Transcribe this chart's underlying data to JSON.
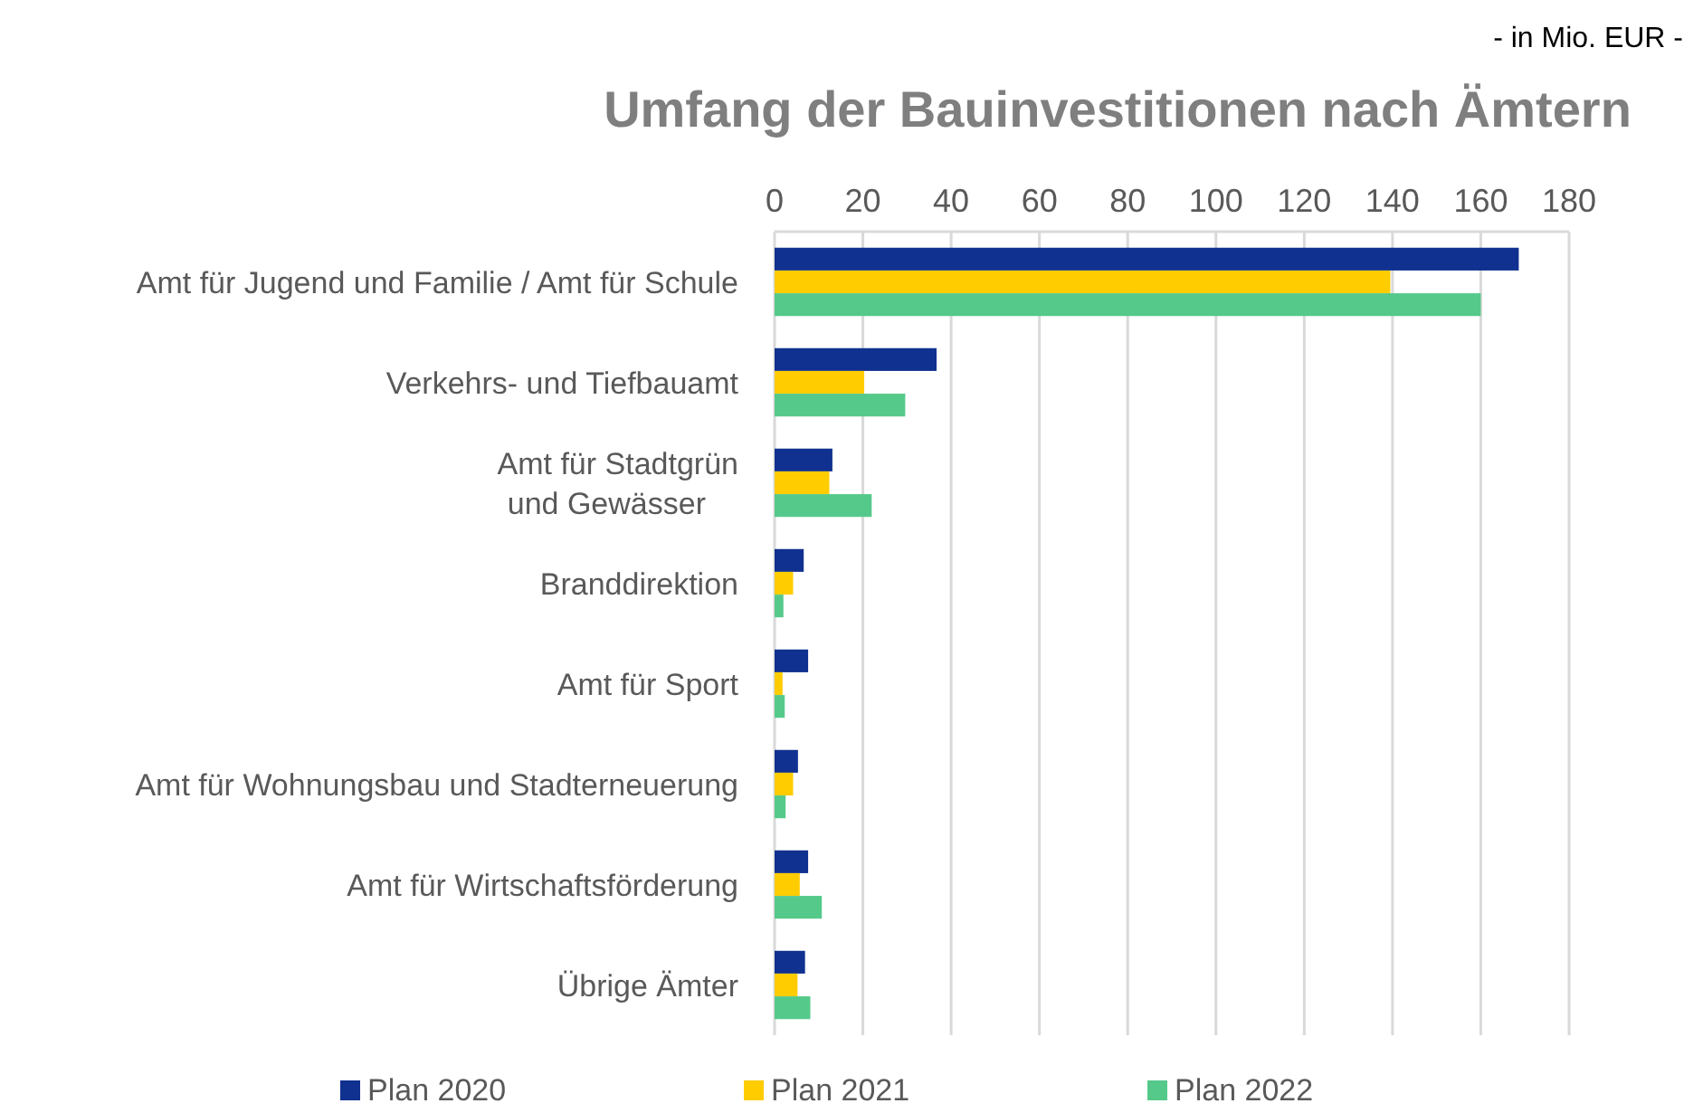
{
  "chart_data": {
    "type": "bar",
    "orientation": "horizontal",
    "title": "Umfang der Bauinvestitionen nach Ämtern",
    "annotations": [
      "- in Mio. EUR -"
    ],
    "categories": [
      "Amt für Jugend und Familie / Amt für Schule",
      "Verkehrs- und Tiefbauamt",
      "Amt für Stadtgrün\nund Gewässer",
      "Branddirektion",
      "Amt für Sport",
      "Amt für Wohnungsbau und Stadterneuerung",
      "Amt für Wirtschaftsförderung",
      "Übrige Ämter"
    ],
    "series": [
      {
        "name": "Plan 2020",
        "color": "#10318f",
        "values": [
          168.6,
          36.7,
          13.1,
          6.6,
          7.6,
          5.3,
          7.6,
          6.9
        ]
      },
      {
        "name": "Plan 2021",
        "color": "#ffcc00",
        "values": [
          139.5,
          20.3,
          12.4,
          4.2,
          1.8,
          4.2,
          5.7,
          5.2
        ]
      },
      {
        "name": "Plan 2022",
        "color": "#55c98a",
        "values": [
          160,
          29.6,
          22.0,
          2.0,
          2.3,
          2.5,
          10.7,
          8.1
        ]
      }
    ],
    "xlim": [
      0,
      180
    ],
    "xticks": [
      0,
      20,
      40,
      60,
      80,
      100,
      120,
      140,
      160,
      180
    ],
    "grid": "x",
    "legend": "bottom"
  }
}
